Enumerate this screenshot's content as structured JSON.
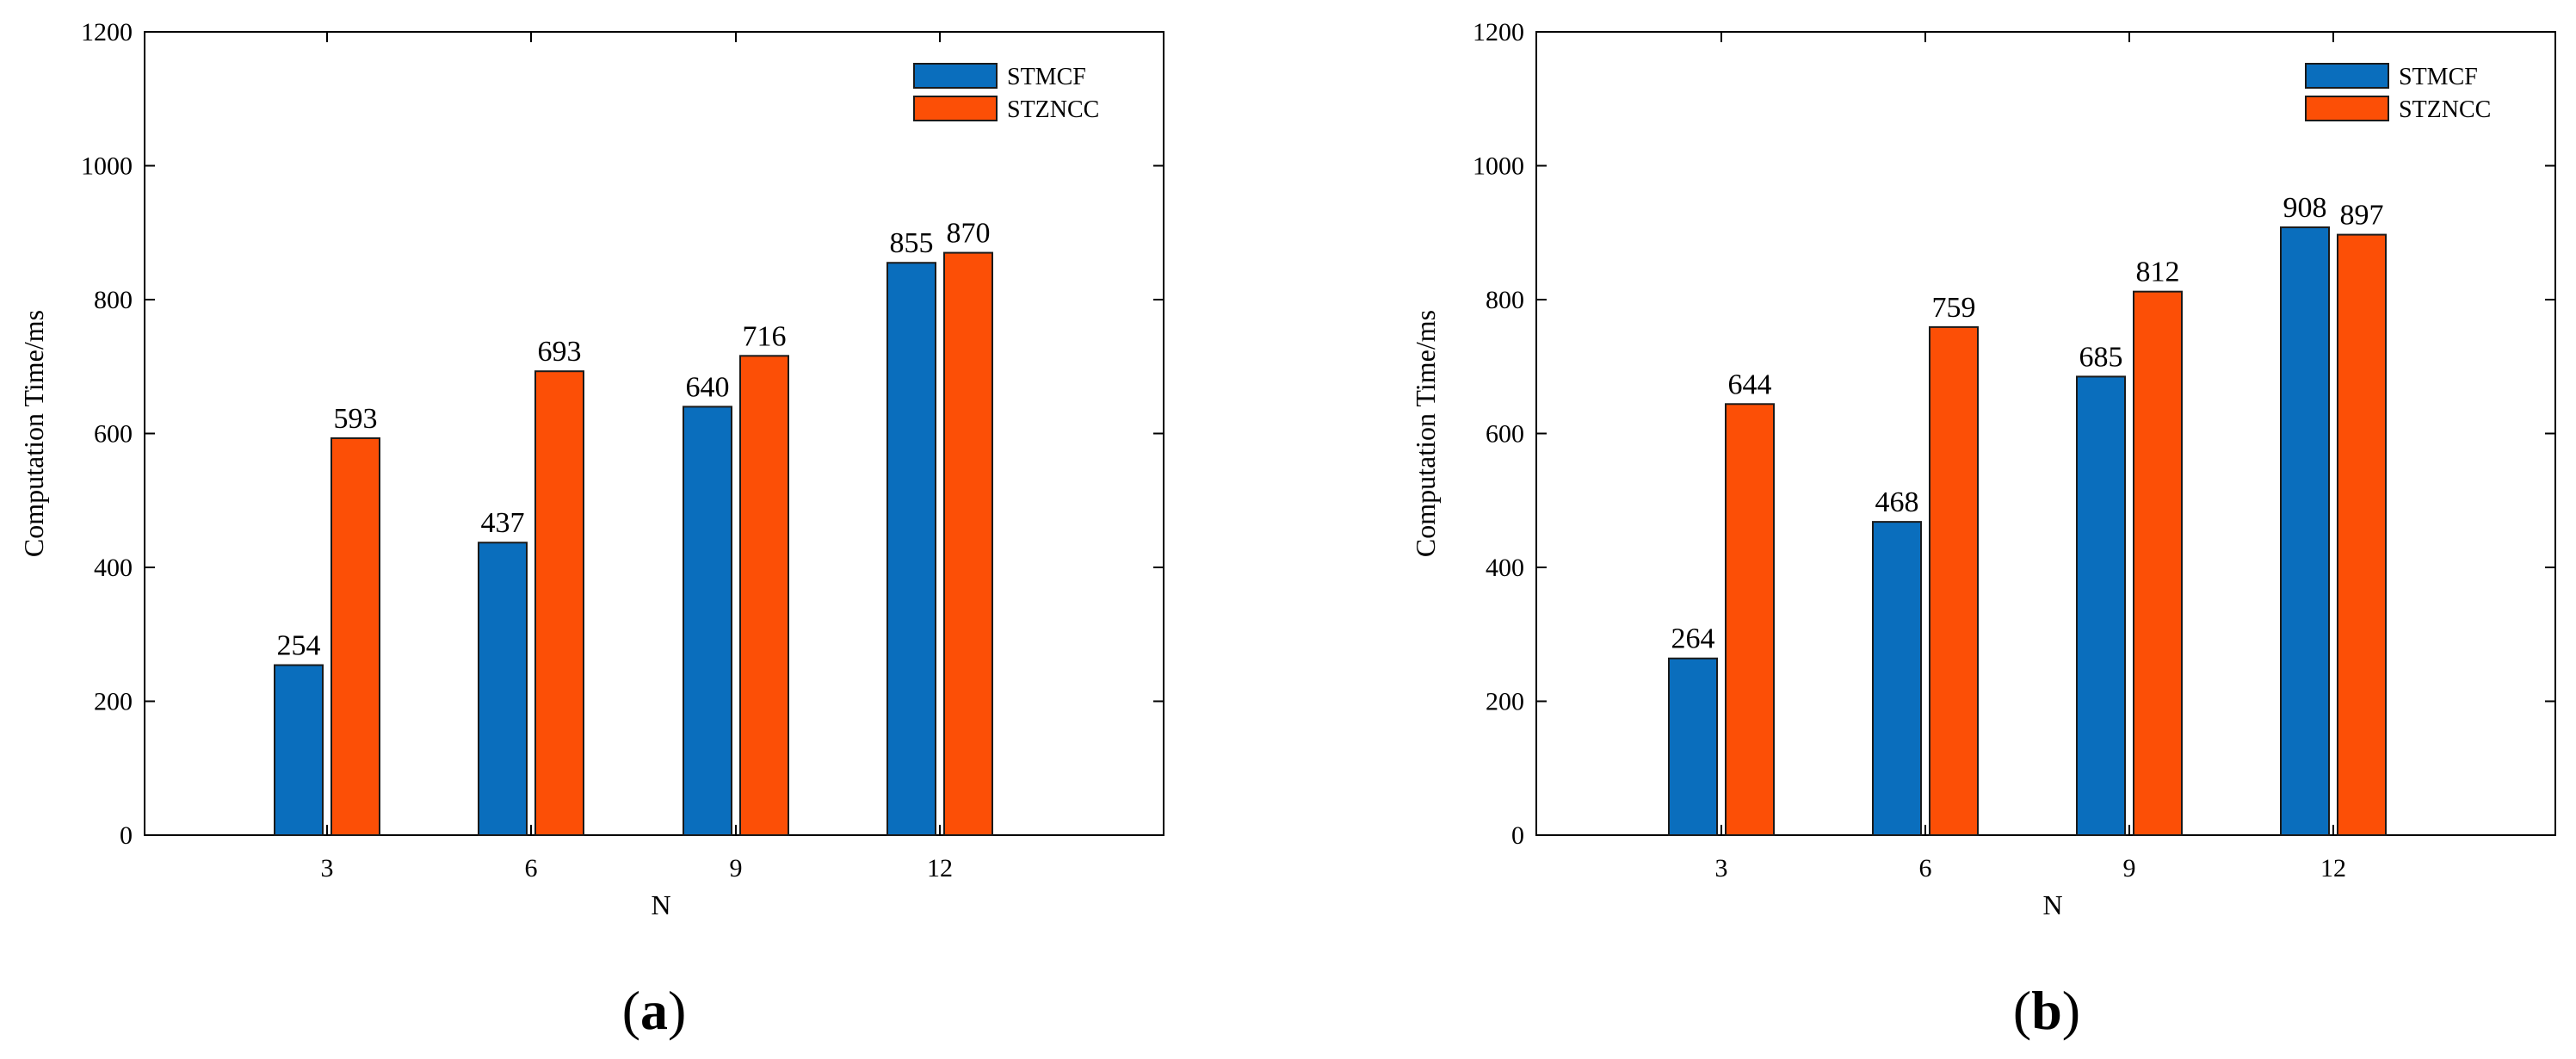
{
  "chart_data": [
    {
      "type": "bar",
      "caption_letter": "a",
      "caption_open": "(",
      "caption_close": ")",
      "title": "",
      "xlabel": "N",
      "ylabel": "Computation Time/ms",
      "categories": [
        "3",
        "6",
        "9",
        "12"
      ],
      "ylim": [
        0,
        1200
      ],
      "yticks": [
        0,
        200,
        400,
        600,
        800,
        1000,
        1200
      ],
      "grid": false,
      "legend_position": "top-right",
      "series": [
        {
          "name": "STMCF",
          "color": "#0a6ebd",
          "values": [
            254,
            437,
            640,
            855
          ]
        },
        {
          "name": "STZNCC",
          "color": "#fc4f06",
          "values": [
            593,
            693,
            716,
            870
          ]
        }
      ]
    },
    {
      "type": "bar",
      "caption_letter": "b",
      "caption_open": "(",
      "caption_close": ")",
      "title": "",
      "xlabel": "N",
      "ylabel": "Computation Time/ms",
      "categories": [
        "3",
        "6",
        "9",
        "12"
      ],
      "ylim": [
        0,
        1200
      ],
      "yticks": [
        0,
        200,
        400,
        600,
        800,
        1000,
        1200
      ],
      "grid": false,
      "legend_position": "top-right",
      "series": [
        {
          "name": "STMCF",
          "color": "#0a6ebd",
          "values": [
            264,
            468,
            685,
            908
          ]
        },
        {
          "name": "STZNCC",
          "color": "#fc4f06",
          "values": [
            644,
            759,
            812,
            897
          ]
        }
      ]
    }
  ]
}
